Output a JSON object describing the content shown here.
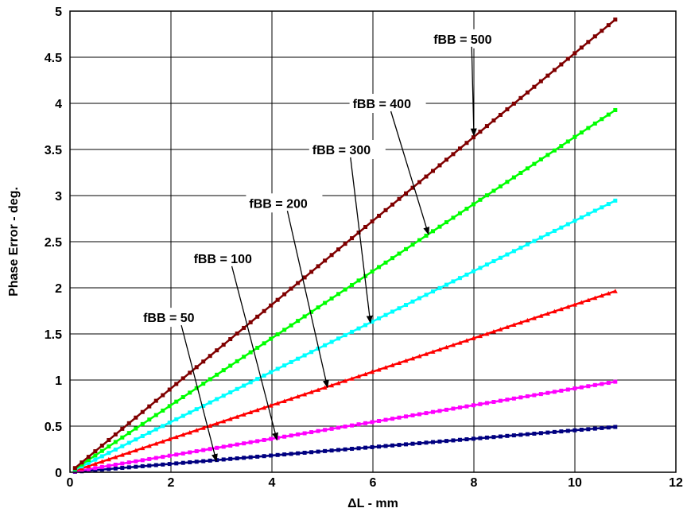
{
  "chart_data": {
    "type": "line",
    "title": "",
    "xlabel": "ΔL - mm",
    "ylabel": "Phase Error - deg.",
    "xlim": [
      0,
      12
    ],
    "ylim": [
      0,
      5
    ],
    "xticks": [
      "0",
      "2",
      "4",
      "6",
      "8",
      "10",
      "12"
    ],
    "yticks": [
      "0",
      "0.5",
      "1",
      "1.5",
      "2",
      "2.5",
      "3",
      "3.5",
      "4",
      "4.5",
      "5"
    ],
    "grid": true,
    "x_start": 0.1,
    "x_end": 10.8,
    "series": [
      {
        "name": "fBB = 50",
        "color": "#000080",
        "marker": "square",
        "slope": 0.0455
      },
      {
        "name": "fBB = 100",
        "color": "#ff00ff",
        "marker": "square",
        "slope": 0.0909
      },
      {
        "name": "fBB = 200",
        "color": "#ff0000",
        "marker": "triangle",
        "slope": 0.1818
      },
      {
        "name": "fBB = 300",
        "color": "#00ffff",
        "marker": "square",
        "slope": 0.2727
      },
      {
        "name": "fBB = 400",
        "color": "#00ff00",
        "marker": "square",
        "slope": 0.3636
      },
      {
        "name": "fBB = 500",
        "color": "#800000",
        "marker": "square",
        "slope": 0.4545
      }
    ],
    "annotations": [
      {
        "text": "fBB = 50",
        "label_x": 1.45,
        "label_y": 1.68,
        "arrow_x": 2.9,
        "arrow_y": 0.12
      },
      {
        "text": "fBB = 100",
        "label_x": 2.45,
        "label_y": 2.32,
        "arrow_x": 4.1,
        "arrow_y": 0.35
      },
      {
        "text": "fBB = 200",
        "label_x": 3.55,
        "label_y": 2.92,
        "arrow_x": 5.1,
        "arrow_y": 0.92
      },
      {
        "text": "fBB = 300",
        "label_x": 4.8,
        "label_y": 3.5,
        "arrow_x": 5.95,
        "arrow_y": 1.62
      },
      {
        "text": "fBB = 400",
        "label_x": 5.6,
        "label_y": 4.0,
        "arrow_x": 7.1,
        "arrow_y": 2.58
      },
      {
        "text": "fBB = 500",
        "label_x": 7.2,
        "label_y": 4.7,
        "arrow_x": 8.0,
        "arrow_y": 3.65
      }
    ]
  }
}
